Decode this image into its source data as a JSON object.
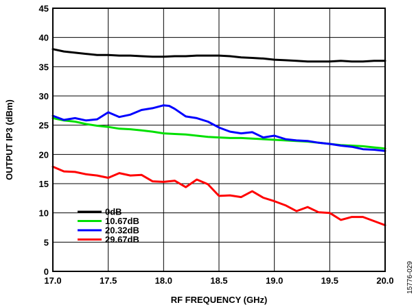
{
  "chart_data": {
    "type": "line",
    "xlabel": "RF FREQUENCY (GHz)",
    "ylabel": "OUTPUT IP3 (dBm)",
    "xlim": [
      17.0,
      20.0
    ],
    "ylim": [
      0,
      45
    ],
    "x_ticks": [
      "17.0",
      "17.5",
      "18.0",
      "18.5",
      "19.0",
      "19.5",
      "20.0"
    ],
    "y_ticks": [
      "0",
      "5",
      "10",
      "15",
      "20",
      "25",
      "30",
      "35",
      "40",
      "45"
    ],
    "grid": true,
    "legend_position": "bottom-left",
    "figure_id": "15776-029",
    "series": [
      {
        "name": "0dB",
        "color": "#000000",
        "x": [
          17.0,
          17.1,
          17.2,
          17.3,
          17.4,
          17.5,
          17.6,
          17.7,
          17.8,
          17.9,
          18.0,
          18.1,
          18.2,
          18.3,
          18.4,
          18.5,
          18.6,
          18.7,
          18.8,
          18.9,
          19.0,
          19.1,
          19.2,
          19.3,
          19.4,
          19.5,
          19.6,
          19.7,
          19.8,
          19.9,
          20.0
        ],
        "y": [
          38.0,
          37.6,
          37.4,
          37.2,
          37.0,
          37.0,
          36.9,
          36.9,
          36.8,
          36.7,
          36.7,
          36.8,
          36.8,
          36.9,
          36.9,
          36.9,
          36.8,
          36.6,
          36.5,
          36.4,
          36.2,
          36.1,
          36.0,
          35.9,
          35.9,
          35.9,
          36.0,
          35.9,
          35.9,
          36.0,
          36.0
        ]
      },
      {
        "name": "10.67dB",
        "color": "#00e000",
        "x": [
          17.0,
          17.1,
          17.2,
          17.3,
          17.4,
          17.5,
          17.6,
          17.7,
          17.8,
          17.9,
          18.0,
          18.1,
          18.2,
          18.3,
          18.4,
          18.5,
          18.6,
          18.7,
          18.8,
          18.9,
          19.0,
          19.1,
          19.2,
          19.3,
          19.4,
          19.5,
          19.6,
          19.7,
          19.8,
          19.9,
          20.0
        ],
        "y": [
          26.2,
          25.8,
          25.6,
          25.2,
          24.9,
          24.7,
          24.4,
          24.3,
          24.1,
          23.9,
          23.6,
          23.5,
          23.4,
          23.2,
          23.0,
          22.9,
          22.8,
          22.8,
          22.7,
          22.6,
          22.5,
          22.4,
          22.3,
          22.2,
          22.0,
          21.8,
          21.6,
          21.5,
          21.4,
          21.2,
          21.0
        ]
      },
      {
        "name": "20.32dB",
        "color": "#0000ff",
        "x": [
          17.0,
          17.1,
          17.2,
          17.3,
          17.4,
          17.5,
          17.6,
          17.7,
          17.8,
          17.9,
          18.0,
          18.05,
          18.1,
          18.2,
          18.3,
          18.4,
          18.5,
          18.6,
          18.7,
          18.8,
          18.9,
          19.0,
          19.1,
          19.2,
          19.3,
          19.4,
          19.5,
          19.6,
          19.7,
          19.8,
          19.9,
          20.0
        ],
        "y": [
          26.6,
          25.9,
          26.2,
          25.8,
          26.0,
          27.2,
          26.4,
          26.8,
          27.6,
          27.9,
          28.4,
          28.3,
          27.8,
          26.5,
          26.2,
          25.6,
          24.6,
          23.9,
          23.6,
          23.8,
          22.9,
          23.2,
          22.6,
          22.4,
          22.3,
          22.0,
          21.8,
          21.5,
          21.3,
          20.9,
          20.8,
          20.6
        ]
      },
      {
        "name": "29.67dB",
        "color": "#ff0000",
        "x": [
          17.0,
          17.1,
          17.2,
          17.3,
          17.4,
          17.5,
          17.6,
          17.7,
          17.8,
          17.9,
          18.0,
          18.1,
          18.2,
          18.3,
          18.4,
          18.5,
          18.6,
          18.7,
          18.8,
          18.9,
          19.0,
          19.1,
          19.2,
          19.3,
          19.4,
          19.5,
          19.6,
          19.7,
          19.8,
          19.9,
          20.0
        ],
        "y": [
          17.9,
          17.1,
          17.0,
          16.6,
          16.4,
          16.0,
          16.8,
          16.4,
          16.5,
          15.4,
          15.3,
          15.5,
          14.4,
          15.7,
          14.9,
          12.9,
          13.0,
          12.7,
          13.7,
          12.6,
          12.0,
          11.3,
          10.3,
          11.0,
          10.1,
          10.0,
          8.8,
          9.3,
          9.3,
          8.6,
          7.9
        ]
      }
    ]
  }
}
